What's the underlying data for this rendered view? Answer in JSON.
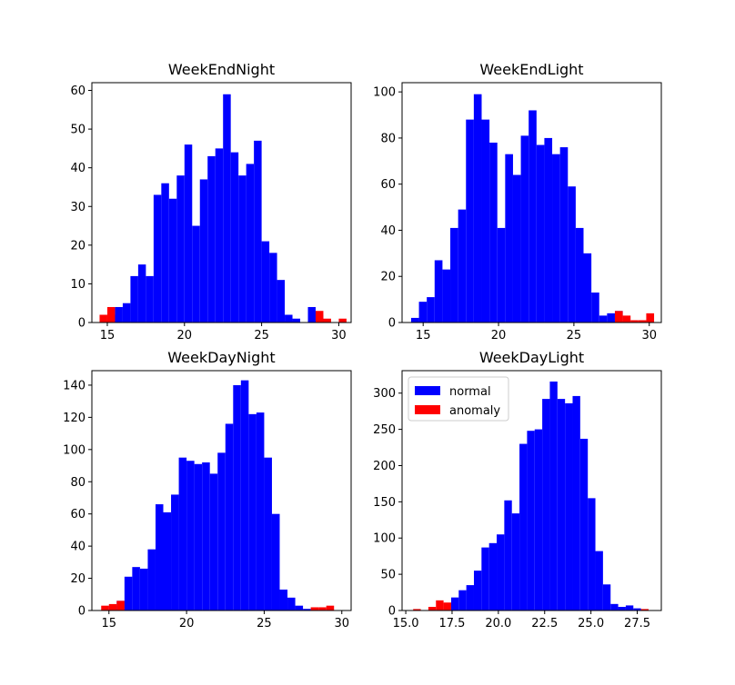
{
  "chart_data": [
    {
      "type": "bar",
      "title": "WeekEndNight",
      "xlim": [
        14,
        30.8
      ],
      "ylim": [
        0,
        62
      ],
      "xticks": [
        "15",
        "20",
        "25",
        "30"
      ],
      "yticks": [
        "0",
        "10",
        "20",
        "30",
        "40",
        "50",
        "60"
      ],
      "bins": [
        14.5,
        15,
        15.5,
        16,
        16.5,
        17,
        17.5,
        18,
        18.5,
        19,
        19.5,
        20,
        20.5,
        21,
        21.5,
        22,
        22.5,
        23,
        23.5,
        24,
        24.5,
        25,
        25.5,
        26,
        26.5,
        27,
        27.5,
        28,
        28.5,
        29,
        29.5,
        30
      ],
      "series": [
        {
          "name": "normal",
          "color": "#0000ff",
          "values": [
            0,
            2,
            4,
            5,
            12,
            15,
            12,
            33,
            36,
            32,
            38,
            46,
            25,
            37,
            43,
            45,
            59,
            44,
            38,
            41,
            47,
            21,
            18,
            11,
            2,
            1,
            0,
            4,
            2,
            0,
            0,
            0
          ]
        },
        {
          "name": "anomaly",
          "color": "#ff0000",
          "values": [
            2,
            4,
            0,
            0,
            0,
            0,
            0,
            0,
            0,
            0,
            0,
            0,
            0,
            0,
            0,
            0,
            0,
            0,
            0,
            0,
            0,
            0,
            0,
            0,
            0,
            0,
            0,
            0,
            3,
            1,
            0,
            1
          ]
        }
      ]
    },
    {
      "type": "bar",
      "title": "WeekEndLight",
      "xlim": [
        13.6,
        30.8
      ],
      "ylim": [
        0,
        104
      ],
      "xticks": [
        "15",
        "20",
        "25",
        "30"
      ],
      "yticks": [
        "0",
        "20",
        "40",
        "60",
        "80",
        "100"
      ],
      "bins": [
        14.2,
        14.72,
        15.24,
        15.76,
        16.28,
        16.8,
        17.32,
        17.84,
        18.36,
        18.88,
        19.4,
        19.92,
        20.44,
        20.96,
        21.48,
        22,
        22.52,
        23.04,
        23.56,
        24.08,
        24.6,
        25.12,
        25.64,
        26.16,
        26.68,
        27.2,
        27.72,
        28.24,
        28.76,
        29.28,
        29.8
      ],
      "series": [
        {
          "name": "normal",
          "color": "#0000ff",
          "values": [
            2,
            9,
            11,
            27,
            23,
            41,
            49,
            88,
            99,
            88,
            78,
            41,
            73,
            64,
            81,
            92,
            77,
            80,
            73,
            76,
            59,
            41,
            30,
            13,
            3,
            4,
            5,
            0,
            0,
            0,
            0
          ]
        },
        {
          "name": "anomaly",
          "color": "#ff0000",
          "values": [
            0,
            0,
            0,
            0,
            0,
            0,
            0,
            0,
            0,
            0,
            0,
            0,
            0,
            0,
            0,
            0,
            0,
            0,
            0,
            0,
            0,
            0,
            0,
            0,
            0,
            0,
            5,
            3,
            1,
            1,
            4
          ]
        }
      ]
    },
    {
      "type": "bar",
      "title": "WeekDayNight",
      "xlim": [
        13.9,
        30.6
      ],
      "ylim": [
        0,
        149
      ],
      "xticks": [
        "15",
        "20",
        "25",
        "30"
      ],
      "yticks": [
        "0",
        "20",
        "40",
        "60",
        "80",
        "100",
        "120",
        "140"
      ],
      "bins": [
        14.5,
        15,
        15.5,
        16,
        16.5,
        17,
        17.5,
        18,
        18.5,
        19,
        19.5,
        20,
        20.5,
        21,
        21.5,
        22,
        22.5,
        23,
        23.5,
        24,
        24.5,
        25,
        25.5,
        26,
        26.5,
        27,
        27.5,
        28,
        28.5,
        29,
        29.5
      ],
      "series": [
        {
          "name": "normal",
          "color": "#0000ff",
          "values": [
            0,
            3,
            6,
            21,
            27,
            26,
            38,
            66,
            61,
            72,
            95,
            93,
            91,
            92,
            85,
            98,
            116,
            140,
            143,
            122,
            123,
            95,
            60,
            13,
            8,
            3,
            1,
            0,
            0,
            0,
            0
          ]
        },
        {
          "name": "anomaly",
          "color": "#ff0000",
          "values": [
            3,
            4,
            6,
            0,
            0,
            0,
            0,
            0,
            0,
            0,
            0,
            0,
            0,
            0,
            0,
            0,
            0,
            0,
            0,
            0,
            0,
            0,
            0,
            0,
            0,
            0,
            0,
            2,
            2,
            3,
            0
          ]
        }
      ]
    },
    {
      "type": "bar",
      "title": "WeekDayLight",
      "xlim": [
        14.8,
        28.8
      ],
      "ylim": [
        0,
        331
      ],
      "xticks": [
        "15.0",
        "17.5",
        "20.0",
        "22.5",
        "25.0",
        "27.5"
      ],
      "yticks": [
        "0",
        "50",
        "100",
        "150",
        "200",
        "250",
        "300"
      ],
      "bins": [
        15.4,
        15.81,
        16.22,
        16.63,
        17.04,
        17.45,
        17.86,
        18.27,
        18.68,
        19.09,
        19.5,
        19.91,
        20.32,
        20.73,
        21.14,
        21.55,
        21.96,
        22.37,
        22.78,
        23.19,
        23.6,
        24.01,
        24.42,
        24.83,
        25.24,
        25.65,
        26.06,
        26.47,
        26.88,
        27.29,
        27.7
      ],
      "series": [
        {
          "name": "normal",
          "color": "#0000ff",
          "values": [
            0,
            0,
            0,
            0,
            0,
            18,
            28,
            35,
            55,
            87,
            93,
            105,
            152,
            134,
            230,
            248,
            250,
            292,
            316,
            292,
            286,
            296,
            237,
            155,
            82,
            36,
            9,
            5,
            7,
            3,
            0
          ]
        },
        {
          "name": "anomaly",
          "color": "#ff0000",
          "values": [
            2,
            0,
            5,
            14,
            11,
            0,
            0,
            0,
            0,
            0,
            0,
            0,
            0,
            0,
            0,
            0,
            0,
            0,
            0,
            0,
            0,
            0,
            0,
            0,
            0,
            0,
            0,
            0,
            0,
            0,
            2
          ]
        }
      ],
      "legend": {
        "position": "upper-left",
        "entries": [
          "normal",
          "anomaly"
        ]
      }
    }
  ]
}
